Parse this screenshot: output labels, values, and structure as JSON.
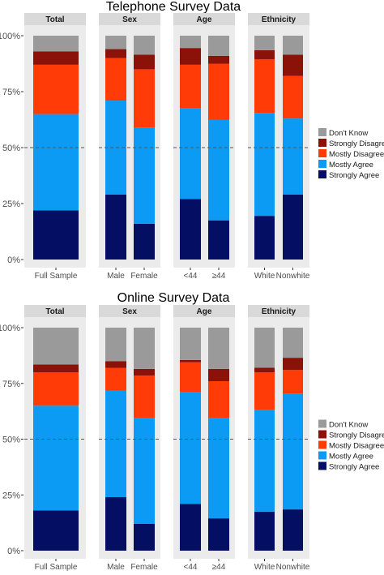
{
  "colors": {
    "dont_know": "#9a9a9a",
    "strongly_disagree": "#8b1208",
    "mostly_disagree": "#ff3b08",
    "mostly_agree": "#0b9bf5",
    "strongly_agree": "#040f63",
    "panel_bg": "#ebebeb",
    "strip_bg": "#d9d9d9",
    "reference_line": "#555555"
  },
  "legend_order": [
    "dont_know",
    "strongly_disagree",
    "mostly_disagree",
    "mostly_agree",
    "strongly_agree"
  ],
  "stack_order": [
    "strongly_agree",
    "mostly_agree",
    "mostly_disagree",
    "strongly_disagree",
    "dont_know"
  ],
  "chart_data": [
    {
      "type": "bar",
      "stacked": true,
      "title": "Telephone Survey Data",
      "ylim": [
        0,
        100
      ],
      "y_ticks": [
        "0%",
        "25%",
        "50%",
        "75%",
        "100%"
      ],
      "reference_line": 50,
      "grid": false,
      "legend_placement": "right",
      "legend": [
        "Don't Know",
        "Strongly Disagree",
        "Mostly Disagree",
        "Mostly Agree",
        "Strongly Agree"
      ],
      "facets": [
        {
          "strip": "Total",
          "categories": [
            "Full Sample"
          ]
        },
        {
          "strip": "Sex",
          "categories": [
            "Male",
            "Female"
          ]
        },
        {
          "strip": "Age",
          "categories": [
            "<44",
            "≥44"
          ]
        },
        {
          "strip": "Ethnicity",
          "categories": [
            "White",
            "Nonwhite"
          ]
        }
      ],
      "series": [
        {
          "name": "Strongly Agree",
          "values": [
            22,
            29,
            16,
            27,
            17.5,
            19.5,
            29
          ]
        },
        {
          "name": "Mostly Agree",
          "values": [
            43,
            42,
            43,
            40.5,
            45,
            46,
            34
          ]
        },
        {
          "name": "Mostly Disagree",
          "values": [
            22,
            19,
            26,
            19.5,
            25,
            24,
            19
          ]
        },
        {
          "name": "Strongly Disagree",
          "values": [
            6,
            4,
            6.5,
            7.5,
            3.5,
            4,
            9.5
          ]
        },
        {
          "name": "Don't Know",
          "values": [
            7,
            6,
            8.5,
            5.5,
            9,
            6.5,
            8.5
          ]
        }
      ]
    },
    {
      "type": "bar",
      "stacked": true,
      "title": "Online Survey Data",
      "ylim": [
        0,
        100
      ],
      "y_ticks": [
        "0%",
        "25%",
        "50%",
        "75%",
        "100%"
      ],
      "reference_line": 50,
      "grid": false,
      "legend_placement": "right",
      "legend": [
        "Don't Know",
        "Strongly Disagree",
        "Mostly Disagree",
        "Mostly Agree",
        "Strongly Agree"
      ],
      "facets": [
        {
          "strip": "Total",
          "categories": [
            "Full Sample"
          ]
        },
        {
          "strip": "Sex",
          "categories": [
            "Male",
            "Female"
          ]
        },
        {
          "strip": "Age",
          "categories": [
            "<44",
            "≥44"
          ]
        },
        {
          "strip": "Ethnicity",
          "categories": [
            "White",
            "Nonwhite"
          ]
        }
      ],
      "series": [
        {
          "name": "Strongly Agree",
          "values": [
            18,
            24,
            12,
            21,
            14.5,
            17.5,
            18.5
          ]
        },
        {
          "name": "Mostly Agree",
          "values": [
            47,
            48,
            47.5,
            50,
            45,
            45.5,
            52
          ]
        },
        {
          "name": "Mostly Disagree",
          "values": [
            15,
            10,
            19,
            13.5,
            16.5,
            17,
            10.5
          ]
        },
        {
          "name": "Strongly Disagree",
          "values": [
            3.5,
            3,
            3,
            1,
            5.5,
            2,
            5.5
          ]
        },
        {
          "name": "Don't Know",
          "values": [
            16.5,
            15,
            18.5,
            14.5,
            18.5,
            18,
            13.5
          ]
        }
      ]
    }
  ]
}
